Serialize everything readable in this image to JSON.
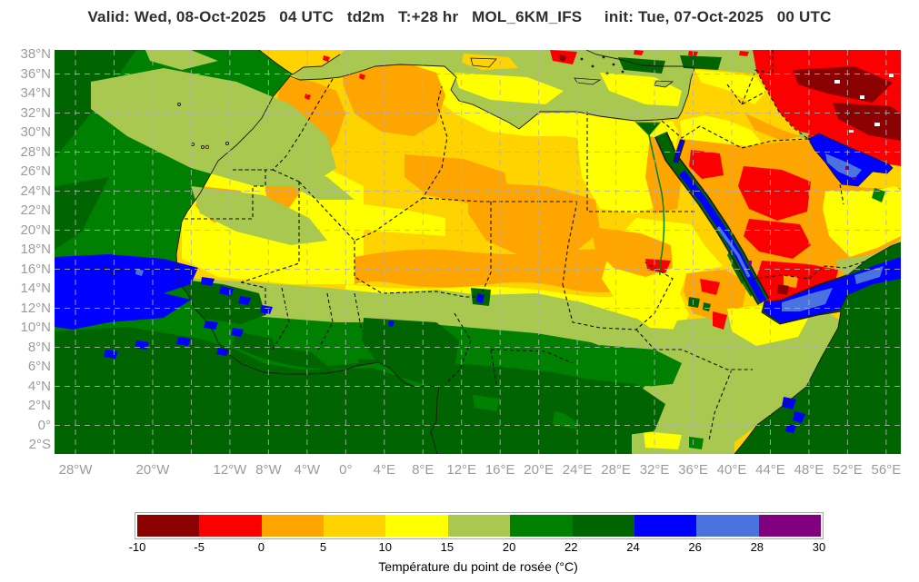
{
  "title": "Valid: Wed, 08-Oct-2025   04 UTC   td2m   T:+28 hr   MOL_6KM_IFS     init: Tue, 07-Oct-2025   00 UTC",
  "map": {
    "axes": {
      "lat_ticks": [
        {
          "label": "38°N",
          "lat": 38
        },
        {
          "label": "36°N",
          "lat": 36
        },
        {
          "label": "34°N",
          "lat": 34
        },
        {
          "label": "32°N",
          "lat": 32
        },
        {
          "label": "30°N",
          "lat": 30
        },
        {
          "label": "28°N",
          "lat": 28
        },
        {
          "label": "26°N",
          "lat": 26
        },
        {
          "label": "24°N",
          "lat": 24
        },
        {
          "label": "22°N",
          "lat": 22
        },
        {
          "label": "20°N",
          "lat": 20
        },
        {
          "label": "18°N",
          "lat": 18
        },
        {
          "label": "16°N",
          "lat": 16
        },
        {
          "label": "14°N",
          "lat": 14
        },
        {
          "label": "12°N",
          "lat": 12
        },
        {
          "label": "10°N",
          "lat": 10
        },
        {
          "label": "8°N",
          "lat": 8
        },
        {
          "label": "6°N",
          "lat": 6
        },
        {
          "label": "4°N",
          "lat": 4
        },
        {
          "label": "2°N",
          "lat": 2
        },
        {
          "label": "0°",
          "lat": 0
        },
        {
          "label": "2°S",
          "lat": -2
        }
      ],
      "lon_ticks": [
        {
          "label": "28°W",
          "lon": -28
        },
        {
          "label": "20°W",
          "lon": -20
        },
        {
          "label": "12°W",
          "lon": -12
        },
        {
          "label": "8°W",
          "lon": -8
        },
        {
          "label": "4°W",
          "lon": -4
        },
        {
          "label": "0°",
          "lon": 0
        },
        {
          "label": "4°E",
          "lon": 4
        },
        {
          "label": "8°E",
          "lon": 8
        },
        {
          "label": "12°E",
          "lon": 12
        },
        {
          "label": "16°E",
          "lon": 16
        },
        {
          "label": "20°E",
          "lon": 20
        },
        {
          "label": "24°E",
          "lon": 24
        },
        {
          "label": "28°E",
          "lon": 28
        },
        {
          "label": "32°E",
          "lon": 32
        },
        {
          "label": "36°E",
          "lon": 36
        },
        {
          "label": "40°E",
          "lon": 40
        },
        {
          "label": "44°E",
          "lon": 44
        },
        {
          "label": "48°E",
          "lon": 48
        },
        {
          "label": "52°E",
          "lon": 52
        },
        {
          "label": "56°E",
          "lon": 56
        }
      ]
    }
  },
  "colorbar": {
    "title": "Température du point de rosée (°C)",
    "ticks": [
      "-10",
      "-5",
      "0",
      "5",
      "10",
      "15",
      "20",
      "22",
      "24",
      "26",
      "28",
      "30"
    ],
    "segment_colors": [
      "#8B0000",
      "#FB0000",
      "#FFA500",
      "#FFD300",
      "#FFFF00",
      "#A8C850",
      "#008000",
      "#006400",
      "#0000FF",
      "#4A73E0",
      "#800080"
    ]
  }
}
